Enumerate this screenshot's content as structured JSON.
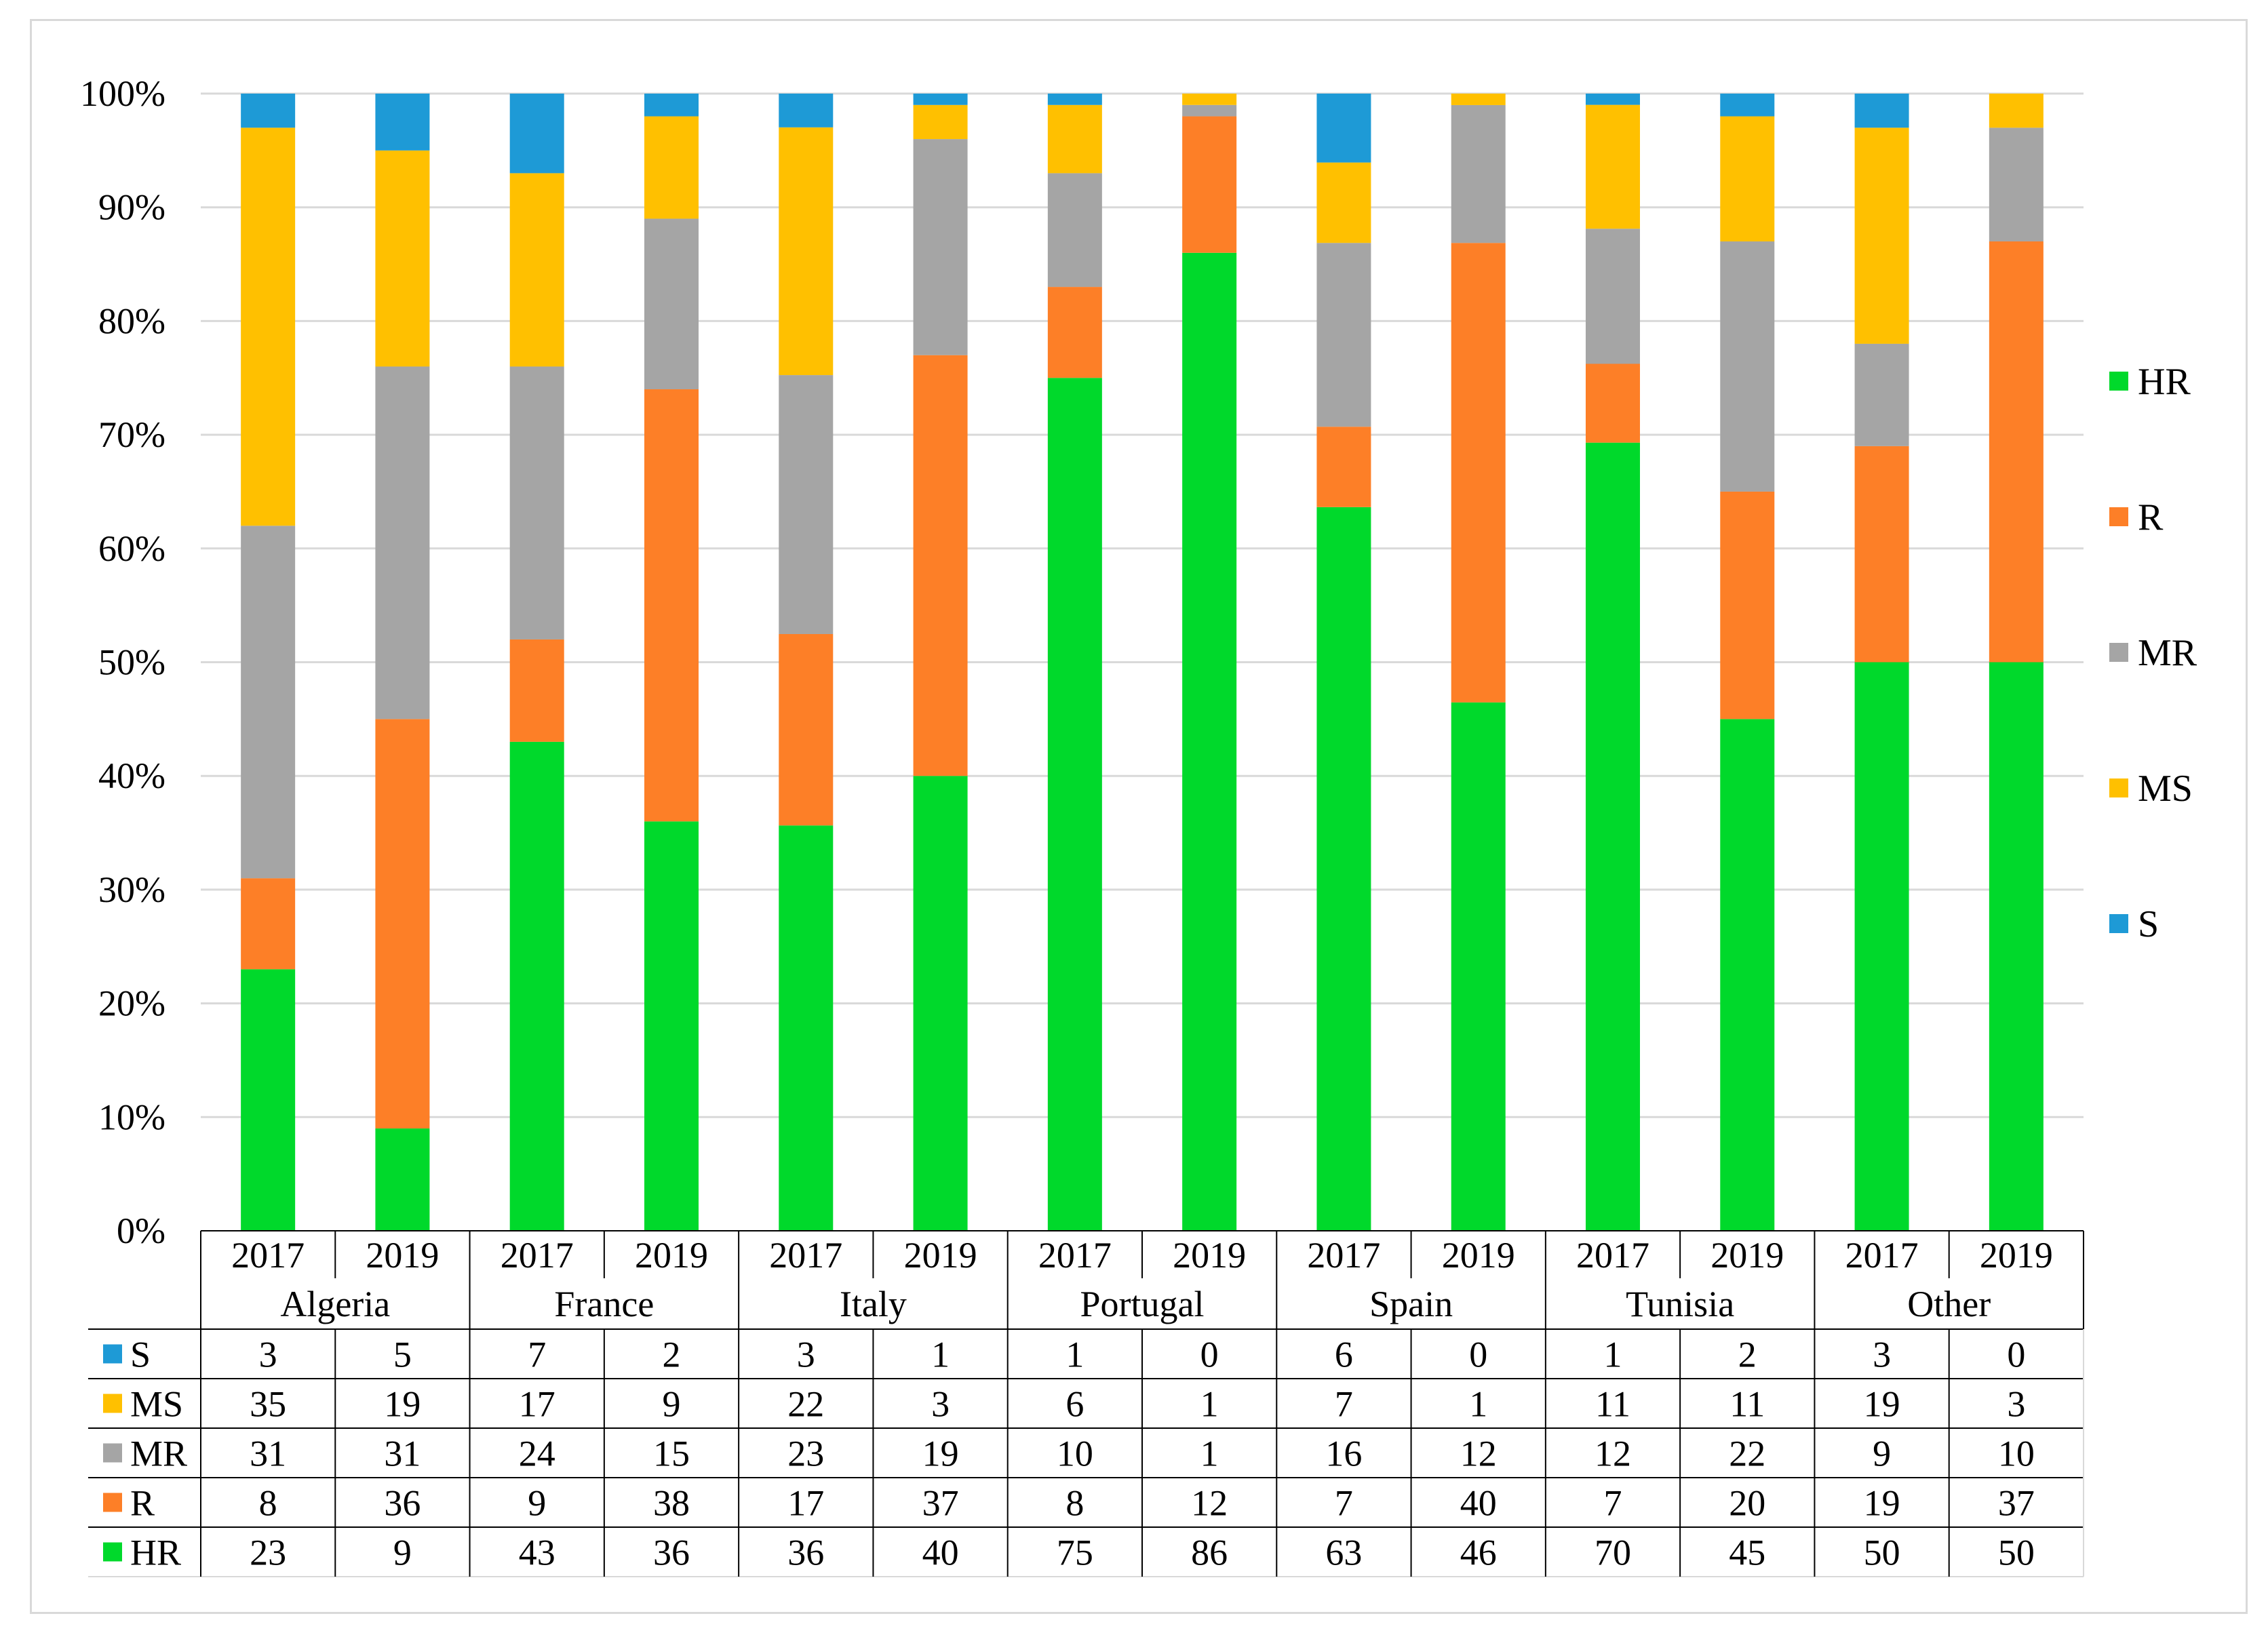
{
  "chart_data": {
    "type": "bar",
    "stacked": true,
    "normalized": true,
    "title": "",
    "xlabel": "",
    "ylabel": "",
    "ylim": [
      0,
      100
    ],
    "y_ticks": [
      "0%",
      "10%",
      "20%",
      "30%",
      "40%",
      "50%",
      "60%",
      "70%",
      "80%",
      "90%",
      "100%"
    ],
    "groups": [
      {
        "name": "Algeria",
        "years": [
          "2017",
          "2019"
        ]
      },
      {
        "name": "France",
        "years": [
          "2017",
          "2019"
        ]
      },
      {
        "name": "Italy",
        "years": [
          "2017",
          "2019"
        ]
      },
      {
        "name": "Portugal",
        "years": [
          "2017",
          "2019"
        ]
      },
      {
        "name": "Spain",
        "years": [
          "2017",
          "2019"
        ]
      },
      {
        "name": "Tunisia",
        "years": [
          "2017",
          "2019"
        ]
      },
      {
        "name": "Other",
        "years": [
          "2017",
          "2019"
        ]
      }
    ],
    "series": [
      {
        "name": "S",
        "color": "#1e9ad6",
        "values": [
          3,
          5,
          7,
          2,
          3,
          1,
          1,
          0,
          6,
          0,
          1,
          2,
          3,
          0
        ]
      },
      {
        "name": "MS",
        "color": "#ffc000",
        "values": [
          35,
          19,
          17,
          9,
          22,
          3,
          6,
          1,
          7,
          1,
          11,
          11,
          19,
          3
        ]
      },
      {
        "name": "MR",
        "color": "#a5a5a5",
        "values": [
          31,
          31,
          24,
          15,
          23,
          19,
          10,
          1,
          16,
          12,
          12,
          22,
          9,
          10
        ]
      },
      {
        "name": "R",
        "color": "#fd7f27",
        "values": [
          8,
          36,
          9,
          38,
          17,
          37,
          8,
          12,
          7,
          40,
          7,
          20,
          19,
          37
        ]
      },
      {
        "name": "HR",
        "color": "#00d92b",
        "values": [
          23,
          9,
          43,
          36,
          36,
          40,
          75,
          86,
          63,
          46,
          70,
          45,
          50,
          50
        ]
      }
    ],
    "stack_order": [
      "HR",
      "R",
      "MR",
      "MS",
      "S"
    ],
    "legend_order": [
      "HR",
      "R",
      "MR",
      "MS",
      "S"
    ],
    "legend_position": "right",
    "grid": true
  }
}
